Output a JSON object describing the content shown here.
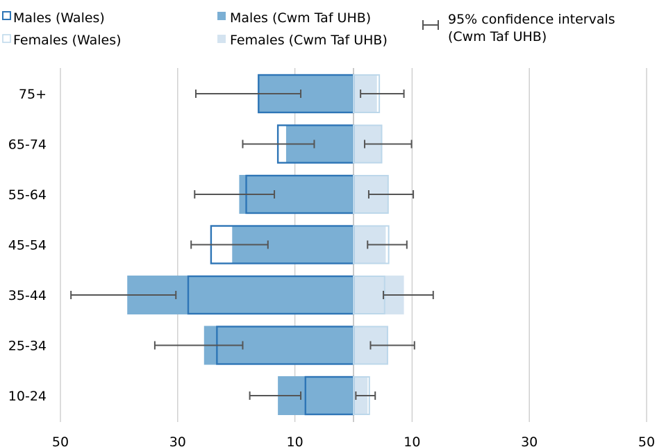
{
  "chart_data": {
    "type": "bar",
    "orientation": "horizontal-population-pyramid",
    "categories": [
      "75+",
      "65-74",
      "55-64",
      "45-54",
      "35-44",
      "25-34",
      "10-24"
    ],
    "x_tick_labels": [
      "50",
      "30",
      "10",
      "10",
      "30",
      "50"
    ],
    "xlim": [
      -50,
      50
    ],
    "grid": true,
    "legend_position": "top",
    "series": [
      {
        "name": "Males (Cwm Taf UHB)",
        "key": "males_cwm",
        "values": [
          -16.2,
          -11.5,
          -19.5,
          -20.7,
          -38.6,
          -25.5,
          -12.9
        ],
        "color": "#7bafd4"
      },
      {
        "name": "Females (Cwm Taf UHB)",
        "key": "females_cwm",
        "values": [
          4.0,
          4.8,
          5.8,
          5.5,
          8.6,
          5.8,
          2.4
        ],
        "color": "#d4e3f0"
      },
      {
        "name": "Males (Wales)",
        "key": "males_wales",
        "values": [
          -16.2,
          -12.9,
          -18.3,
          -24.3,
          -28.2,
          -23.3,
          -8.2
        ],
        "color": "#2e75b6"
      },
      {
        "name": "Females (Wales)",
        "key": "females_wales",
        "values": [
          4.4,
          4.8,
          5.9,
          6.0,
          5.3,
          5.8,
          2.7
        ],
        "color": "#d4e3f0"
      }
    ],
    "error_bars": {
      "name": "95% confidence intervals (Cwm Taf UHB)",
      "males": [
        [
          -26.9,
          -9.0
        ],
        [
          -18.9,
          -6.7
        ],
        [
          -27.1,
          -13.5
        ],
        [
          -27.7,
          -14.6
        ],
        [
          -48.2,
          -30.3
        ],
        [
          -33.9,
          -18.9
        ],
        [
          -17.7,
          -9.0
        ]
      ],
      "females": [
        [
          1.2,
          8.6
        ],
        [
          1.9,
          9.9
        ],
        [
          2.6,
          10.2
        ],
        [
          2.4,
          9.1
        ],
        [
          5.1,
          13.6
        ],
        [
          2.9,
          10.4
        ],
        [
          0.4,
          3.7
        ]
      ]
    }
  },
  "legend": {
    "males_wales": "Males (Wales)",
    "males_cwm": "Males (Cwm Taf UHB)",
    "ci_line1": "95% confidence intervals",
    "ci_line2": "(Cwm Taf UHB)",
    "females_wales": "Females (Wales)",
    "females_cwm": "Females (Cwm Taf UHB)"
  },
  "colors": {
    "gridline": "#d0d0d0",
    "center_line": "#a6a6a6",
    "error_bar": "#555555"
  }
}
